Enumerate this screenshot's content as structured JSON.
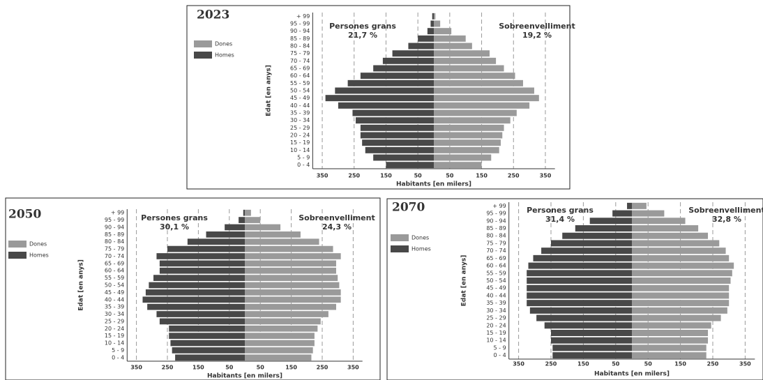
{
  "chart_data": [
    {
      "type": "bar",
      "title": "2023",
      "annotations": [
        "Persones grans",
        "21,7 %",
        "Sobreenvelliment",
        "19,2 %"
      ],
      "y_label": "Edat [en anys]",
      "x_label": "Habitants [en milers]",
      "categories": [
        "0 - 4",
        "5 - 9",
        "10 - 14",
        "15 - 19",
        "20 - 24",
        "25 - 29",
        "30 - 34",
        "35 - 39",
        "40 - 44",
        "45 - 49",
        "50 - 54",
        "55 - 59",
        "60 - 64",
        "65 - 69",
        "70 - 74",
        "75 - 79",
        "80 - 84",
        "85 - 89",
        "90 - 94",
        "95 - 99",
        "+ 99"
      ],
      "series": [
        {
          "name": "Dones",
          "color": "#9a9a9a",
          "values": [
            150,
            180,
            205,
            210,
            215,
            220,
            240,
            260,
            300,
            330,
            315,
            280,
            255,
            220,
            195,
            175,
            120,
            100,
            55,
            20,
            5
          ]
        },
        {
          "name": "Homes",
          "color": "#484848",
          "values": [
            -150,
            -190,
            -215,
            -225,
            -230,
            -230,
            -245,
            -255,
            -300,
            -340,
            -310,
            -270,
            -230,
            -190,
            -160,
            -130,
            -80,
            -50,
            -20,
            -10,
            -5
          ]
        }
      ],
      "xlim": [
        -380,
        380
      ],
      "xticks": [
        {
          "value": -350,
          "label": "350"
        },
        {
          "value": -250,
          "label": "250"
        },
        {
          "value": -150,
          "label": "150"
        },
        {
          "value": -50,
          "label": "50"
        },
        50,
        150,
        250,
        350
      ],
      "grid": true
    },
    {
      "type": "bar",
      "title": "2050",
      "annotations": [
        "Persones grans",
        "30,1 %",
        "Sobreenvelliment",
        "24,3 %"
      ],
      "y_label": "Edat [en anys]",
      "x_label": "Habitants [en milers]",
      "categories": [
        "0 - 4",
        "5 - 9",
        "10 - 14",
        "15 - 19",
        "20 - 24",
        "25 - 29",
        "30 - 34",
        "35 - 39",
        "40 - 44",
        "45 - 49",
        "50 - 54",
        "55 - 59",
        "60 - 64",
        "65 - 69",
        "70 - 74",
        "75 - 79",
        "80 - 84",
        "85 - 89",
        "90 - 94",
        "95 - 99",
        "+ 99"
      ],
      "series": [
        {
          "name": "Dones",
          "color": "#9a9a9a",
          "values": [
            215,
            220,
            225,
            225,
            235,
            245,
            270,
            295,
            310,
            310,
            305,
            300,
            295,
            295,
            310,
            285,
            240,
            180,
            115,
            50,
            20
          ]
        },
        {
          "name": "Homes",
          "color": "#484848",
          "values": [
            -225,
            -235,
            -240,
            -245,
            -245,
            -275,
            -285,
            -315,
            -330,
            -320,
            -310,
            -295,
            -275,
            -275,
            -285,
            -250,
            -185,
            -125,
            -65,
            -20,
            -5
          ]
        }
      ],
      "xlim": [
        -380,
        380
      ],
      "xticks": [
        {
          "value": -350,
          "label": "350"
        },
        {
          "value": -250,
          "label": "250"
        },
        {
          "value": -150,
          "label": "150"
        },
        {
          "value": -50,
          "label": "50"
        },
        50,
        150,
        250,
        350
      ],
      "grid": true
    },
    {
      "type": "bar",
      "title": "2070",
      "annotations": [
        "Persones grans",
        "31,4 %",
        "Sobreenvelliment",
        "32,8 %"
      ],
      "y_label": "Edat [en anys]",
      "x_label": "Habitants [en milers]",
      "categories": [
        "0 - 4",
        "5 - 9",
        "10 - 14",
        "15 - 19",
        "20 - 24",
        "25 - 29",
        "30 - 34",
        "35 - 39",
        "40 - 44",
        "45 - 49",
        "50 - 54",
        "55 - 59",
        "60 - 64",
        "65 - 69",
        "70 - 74",
        "75 - 79",
        "80 - 84",
        "85 - 89",
        "90 - 94",
        "95 - 99",
        "+ 99"
      ],
      "series": [
        {
          "name": "Dones",
          "color": "#9a9a9a",
          "values": [
            230,
            230,
            235,
            235,
            245,
            275,
            295,
            300,
            300,
            300,
            305,
            310,
            315,
            300,
            290,
            270,
            235,
            205,
            165,
            100,
            45
          ]
        },
        {
          "name": "Homes",
          "color": "#484848",
          "values": [
            -245,
            -245,
            -250,
            -250,
            -270,
            -295,
            -315,
            -325,
            -325,
            -325,
            -325,
            -325,
            -320,
            -305,
            -280,
            -250,
            -215,
            -175,
            -130,
            -60,
            -15
          ]
        }
      ],
      "xlim": [
        -380,
        380
      ],
      "xticks": [
        {
          "value": -350,
          "label": "350"
        },
        {
          "value": -250,
          "label": "250"
        },
        {
          "value": -150,
          "label": "150"
        },
        {
          "value": -50,
          "label": "50"
        },
        50,
        150,
        250,
        350
      ],
      "grid": true
    }
  ]
}
